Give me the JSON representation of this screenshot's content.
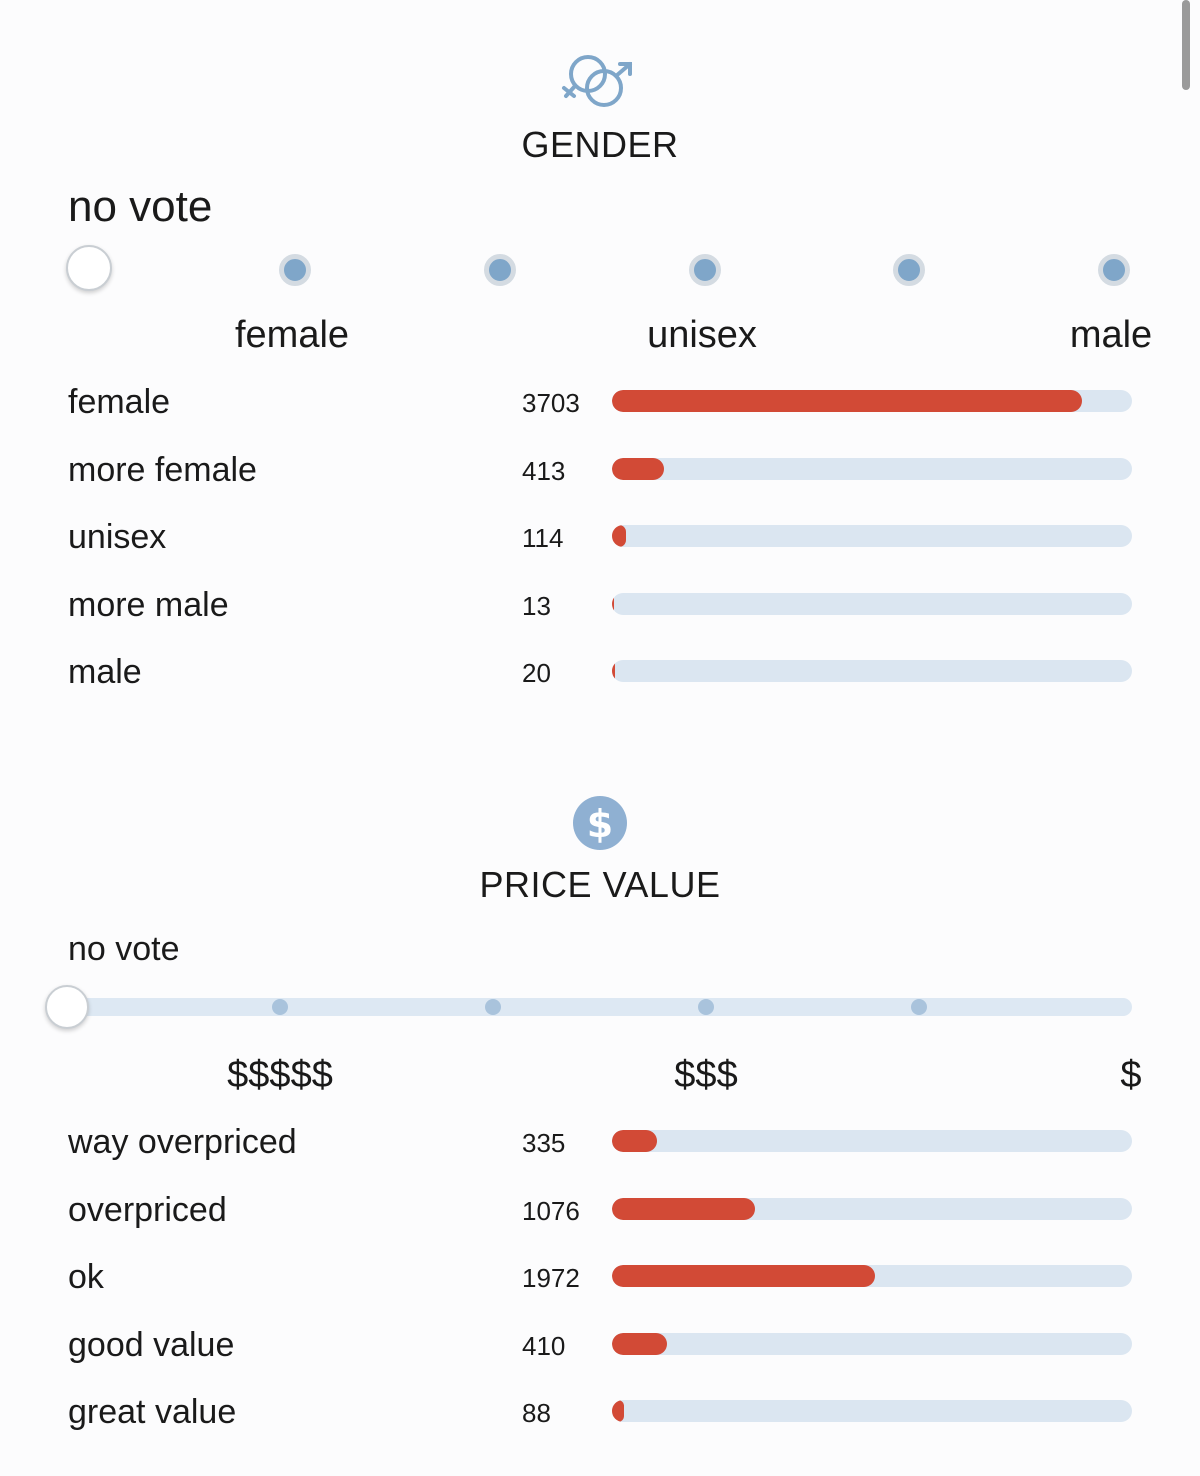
{
  "colors": {
    "accent": "#d24a36",
    "track": "#dbe6f1",
    "icon": "#7fa6c9"
  },
  "gender": {
    "icon": "gender-symbols-icon",
    "title": "GENDER",
    "no_vote": "no vote",
    "scale_labels": {
      "left": "female",
      "middle": "unisex",
      "right": "male"
    },
    "vote_level_max": 4100,
    "rows": [
      {
        "label": "female",
        "count": "3703",
        "value": 3703
      },
      {
        "label": "more female",
        "count": "413",
        "value": 413
      },
      {
        "label": "unisex",
        "count": "114",
        "value": 114
      },
      {
        "label": "more male",
        "count": "13",
        "value": 13
      },
      {
        "label": "male",
        "count": "20",
        "value": 20
      }
    ]
  },
  "price": {
    "icon": "dollar-coin-icon",
    "title": "PRICE VALUE",
    "no_vote": "no vote",
    "scale_labels": {
      "left": "$$$$$",
      "middle": "$$$",
      "right": "$"
    },
    "vote_level_max": 3900,
    "rows": [
      {
        "label": "way overpriced",
        "count": "335",
        "value": 335
      },
      {
        "label": "overpriced",
        "count": "1076",
        "value": 1076
      },
      {
        "label": "ok",
        "count": "1972",
        "value": 1972
      },
      {
        "label": "good value",
        "count": "410",
        "value": 410
      },
      {
        "label": "great value",
        "count": "88",
        "value": 88
      }
    ]
  }
}
